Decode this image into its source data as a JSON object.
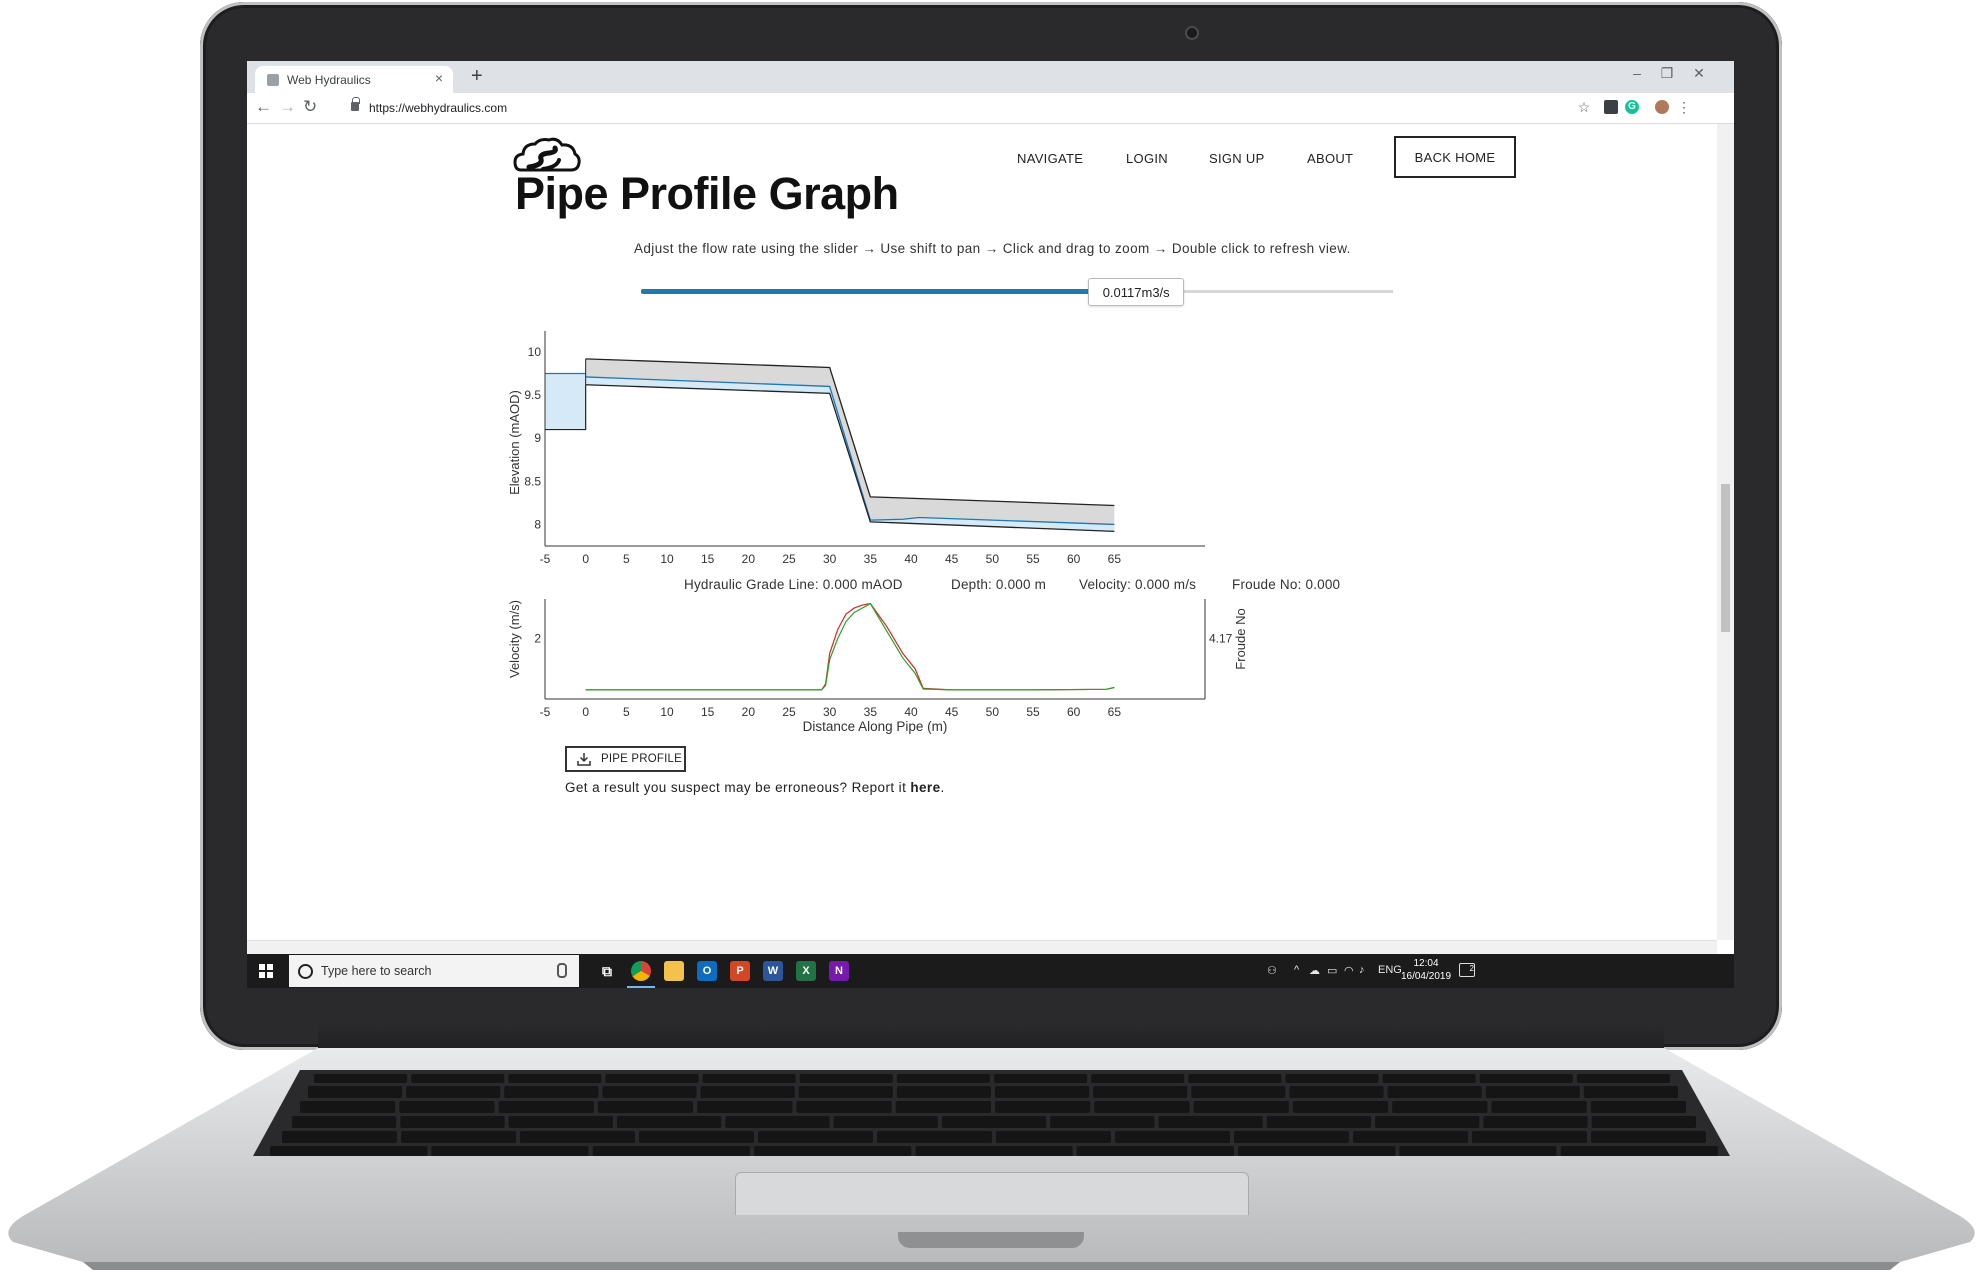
{
  "browser": {
    "tab_title": "Web Hydraulics",
    "url": "https://webhydraulics.com"
  },
  "site": {
    "nav": [
      "NAVIGATE",
      "LOGIN",
      "SIGN UP",
      "ABOUT"
    ],
    "back_home": "BACK HOME",
    "page_title": "Pipe Profile Graph",
    "instructions": "Adjust the flow rate using the slider → Use shift to pan → Click and drag to zoom → Double click to refresh view."
  },
  "slider": {
    "value_label": "0.0117m3/s",
    "fraction": 0.6
  },
  "readout": {
    "hgl": "Hydraulic Grade Line: 0.000 mAOD",
    "depth": "Depth: 0.000 m",
    "velocity": "Velocity: 0.000 m/s",
    "froude": "Froude No: 0.000"
  },
  "download_button": "PIPE PROFILE",
  "report": {
    "prefix": "Get a result you suspect may be erroneous? Report it ",
    "link": "here",
    "suffix": "."
  },
  "taskbar": {
    "search_placeholder": "Type here to search",
    "lang": "ENG",
    "time": "12:04",
    "date": "16/04/2019",
    "notifications": "2"
  },
  "colors": {
    "accent": "#1f77b4",
    "water": "#d6e9f6",
    "pipe": "#d9d9d9",
    "velocity_line": "#d62728",
    "froude_line": "#2ca02c"
  },
  "chart_data": [
    {
      "type": "area",
      "name": "elevation-profile",
      "ylabel": "Elevation (mAOD)",
      "xlim": [
        -5,
        70
      ],
      "ylim": [
        7.75,
        10.15
      ],
      "xticks": [
        -5,
        0,
        5,
        10,
        15,
        20,
        25,
        30,
        35,
        40,
        45,
        50,
        55,
        60,
        65
      ],
      "yticks": [
        {
          "v": 10,
          "label": "10"
        },
        {
          "v": 9.5,
          "label": "9.5"
        },
        {
          "v": 9,
          "label": "9"
        },
        {
          "v": 8.5,
          "label": "8.5"
        },
        {
          "v": 8,
          "label": "8"
        }
      ],
      "manhole": {
        "x0": -5,
        "x1": 0,
        "invert": 9.1,
        "water": 9.75
      },
      "pipe_x": [
        0,
        30,
        35,
        65
      ],
      "pipe_invert": [
        9.62,
        9.52,
        8.03,
        7.92
      ],
      "pipe_soffit": [
        9.92,
        9.82,
        8.32,
        8.22
      ],
      "water_x": [
        0,
        30,
        35,
        39,
        41,
        65
      ],
      "water_level": [
        9.71,
        9.6,
        8.05,
        8.06,
        8.08,
        8.0
      ]
    },
    {
      "type": "line",
      "name": "velocity-froude",
      "xlabel": "Distance Along Pipe (m)",
      "ylabel": "Velocity (m/s)",
      "y2label": "Froude No",
      "xlim": [
        -5,
        70
      ],
      "ylim": [
        0,
        3.3
      ],
      "xticks": [
        -5,
        0,
        5,
        10,
        15,
        20,
        25,
        30,
        35,
        40,
        45,
        50,
        55,
        60,
        65
      ],
      "yticks": [
        {
          "v": 2,
          "label": "2"
        }
      ],
      "y2ticks": [
        {
          "v": 2,
          "label": "4.17"
        }
      ],
      "x": [
        0,
        29,
        29.5,
        30,
        31,
        32,
        33,
        34,
        35,
        37,
        39,
        40.5,
        41.5,
        45,
        55,
        64,
        65
      ],
      "series": [
        {
          "values": [
            0.3,
            0.3,
            0.5,
            1.5,
            2.3,
            2.8,
            3.0,
            3.1,
            3.15,
            2.4,
            1.5,
            1.0,
            0.35,
            0.3,
            0.3,
            0.32,
            0.38
          ]
        },
        {
          "values": [
            0.3,
            0.3,
            0.45,
            1.3,
            2.0,
            2.55,
            2.85,
            3.0,
            3.15,
            2.25,
            1.35,
            0.85,
            0.33,
            0.3,
            0.3,
            0.32,
            0.38
          ]
        }
      ]
    }
  ]
}
